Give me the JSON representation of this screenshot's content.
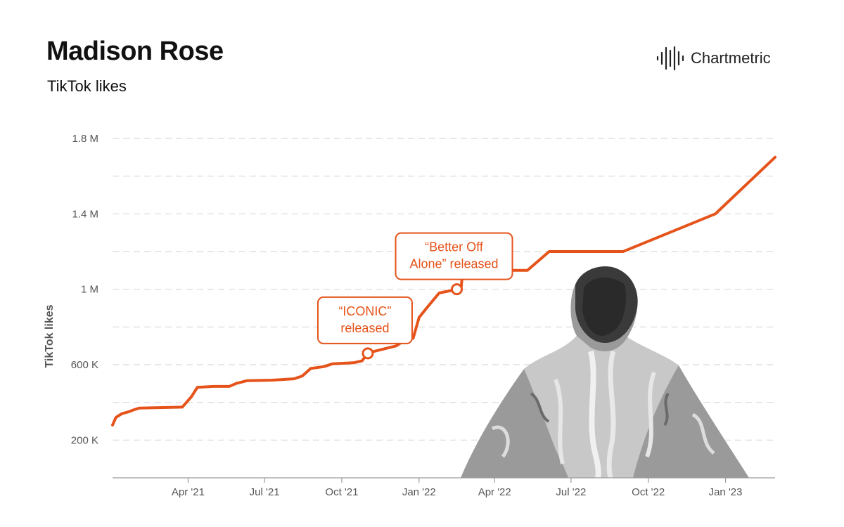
{
  "header": {
    "title": "Madison Rose",
    "subtitle": "TikTok likes"
  },
  "brand": {
    "name": "Chartmetric",
    "logo_icon": "chartmetric-waveform-icon"
  },
  "colors": {
    "line": "#E5531A",
    "grid": "#d9d9d9",
    "axis_text": "#555555",
    "title": "#111111"
  },
  "chart_data": {
    "type": "line",
    "title": "Madison Rose",
    "subtitle": "TikTok likes",
    "xlabel": "",
    "ylabel": "TikTok likes",
    "grid": true,
    "ylim": [
      0,
      1800000
    ],
    "xlim": [
      "2021-01-01",
      "2023-03-01"
    ],
    "yticks": [
      {
        "value": 200000,
        "label": "200 K"
      },
      {
        "value": 600000,
        "label": "600 K"
      },
      {
        "value": 1000000,
        "label": "1 M"
      },
      {
        "value": 1400000,
        "label": "1.4 M"
      },
      {
        "value": 1800000,
        "label": "1.8 M"
      }
    ],
    "xticks": [
      {
        "value": "2021-04-01",
        "label": "Apr '21"
      },
      {
        "value": "2021-07-01",
        "label": "Jul '21"
      },
      {
        "value": "2021-10-01",
        "label": "Oct '21"
      },
      {
        "value": "2022-01-01",
        "label": "Jan '22"
      },
      {
        "value": "2022-04-01",
        "label": "Apr '22"
      },
      {
        "value": "2022-07-01",
        "label": "Jul '22"
      },
      {
        "value": "2022-10-01",
        "label": "Oct '22"
      },
      {
        "value": "2023-01-01",
        "label": "Jan '23"
      }
    ],
    "series": [
      {
        "name": "",
        "points": [
          [
            "2021-01-01",
            280000
          ],
          [
            "2021-01-05",
            320000
          ],
          [
            "2021-01-12",
            340000
          ],
          [
            "2021-01-20",
            350000
          ],
          [
            "2021-01-26",
            360000
          ],
          [
            "2021-02-02",
            370000
          ],
          [
            "2021-03-25",
            375000
          ],
          [
            "2021-03-30",
            400000
          ],
          [
            "2021-04-05",
            430000
          ],
          [
            "2021-04-12",
            480000
          ],
          [
            "2021-05-01",
            485000
          ],
          [
            "2021-05-20",
            485000
          ],
          [
            "2021-05-28",
            500000
          ],
          [
            "2021-06-10",
            515000
          ],
          [
            "2021-07-10",
            518000
          ],
          [
            "2021-08-05",
            525000
          ],
          [
            "2021-08-15",
            540000
          ],
          [
            "2021-08-25",
            580000
          ],
          [
            "2021-09-10",
            590000
          ],
          [
            "2021-09-20",
            605000
          ],
          [
            "2021-10-15",
            610000
          ],
          [
            "2021-10-25",
            620000
          ],
          [
            "2021-11-01",
            660000
          ],
          [
            "2021-11-08",
            670000
          ],
          [
            "2021-12-05",
            700000
          ],
          [
            "2021-12-15",
            730000
          ],
          [
            "2021-12-25",
            740000
          ],
          [
            "2022-01-01",
            850000
          ],
          [
            "2022-01-10",
            900000
          ],
          [
            "2022-01-25",
            980000
          ],
          [
            "2022-02-10",
            995000
          ],
          [
            "2022-02-15",
            1000000
          ],
          [
            "2022-02-20",
            1000000
          ],
          [
            "2022-02-22",
            1100000
          ],
          [
            "2022-05-10",
            1100000
          ],
          [
            "2022-06-05",
            1200000
          ],
          [
            "2022-09-01",
            1200000
          ],
          [
            "2022-12-20",
            1400000
          ],
          [
            "2023-03-01",
            1700000
          ]
        ]
      }
    ],
    "annotations": [
      {
        "date": "2021-11-01",
        "value": 660000,
        "text": [
          "“ICONIC”",
          "released"
        ]
      },
      {
        "date": "2022-02-15",
        "value": 1000000,
        "text": [
          "“Better Off",
          "Alone” released"
        ]
      }
    ]
  }
}
